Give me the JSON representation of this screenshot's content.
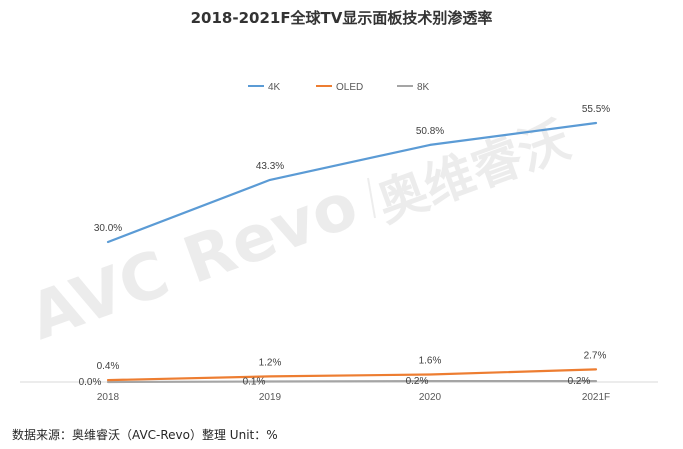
{
  "chart_data": {
    "type": "line",
    "title": "2018-2021F全球TV显示面板技术别渗透率",
    "categories": [
      "2018",
      "2019",
      "2020",
      "2021F"
    ],
    "series": [
      {
        "name": "4K",
        "values": [
          30.0,
          43.3,
          50.8,
          55.5
        ],
        "color": "#5B9BD5",
        "labels": [
          "30.0%",
          "43.3%",
          "50.8%",
          "55.5%"
        ]
      },
      {
        "name": "OLED",
        "values": [
          0.4,
          1.2,
          1.6,
          2.7
        ],
        "color": "#ED7D31",
        "labels": [
          "0.4%",
          "1.2%",
          "1.6%",
          "2.7%"
        ]
      },
      {
        "name": "8K",
        "values": [
          0.0,
          0.1,
          0.2,
          0.2
        ],
        "color": "#A5A5A5",
        "labels": [
          "0.0%",
          "0.1%",
          "0.2%",
          "0.2%"
        ]
      }
    ],
    "ylim": [
      0,
      60
    ],
    "grid": false,
    "legend_position": "top-center",
    "xlabel": "",
    "ylabel": ""
  },
  "watermark": {
    "left": "AVC Revo",
    "right": "奥维睿沃"
  },
  "footer": {
    "source": "数据来源：奥维睿沃（AVC-Revo）整理   Unit：%"
  }
}
